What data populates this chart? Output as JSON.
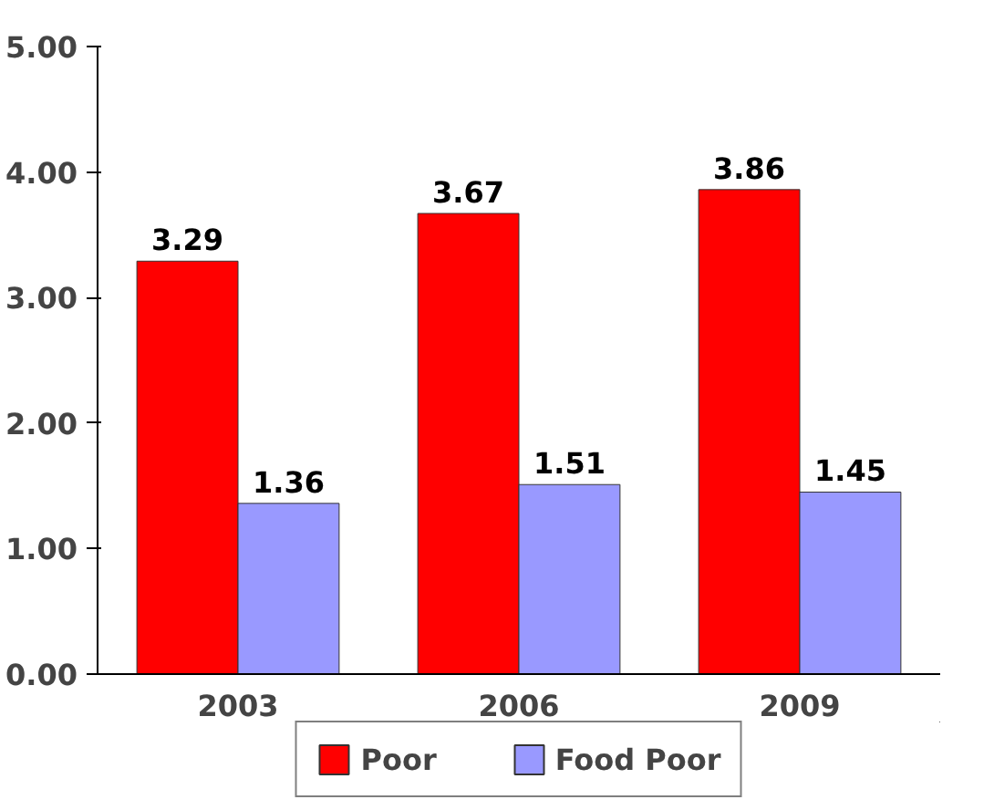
{
  "chart_data": {
    "type": "bar",
    "categories": [
      "2003",
      "2006",
      "2009"
    ],
    "series": [
      {
        "name": "Poor",
        "color": "#ff0000",
        "values": [
          3.29,
          3.67,
          3.86
        ]
      },
      {
        "name": "Food Poor",
        "color": "#9999ff",
        "values": [
          1.36,
          1.51,
          1.45
        ]
      }
    ],
    "ylim": [
      0,
      5
    ],
    "yticks": [
      {
        "value": 0,
        "label": "0.00"
      },
      {
        "value": 1,
        "label": "1.00"
      },
      {
        "value": 2,
        "label": "2.00"
      },
      {
        "value": 3,
        "label": "3.00"
      },
      {
        "value": 4,
        "label": "4.00"
      },
      {
        "value": 5,
        "label": "5.00"
      }
    ],
    "data_labels": true,
    "grid": false,
    "legend": "bottom"
  }
}
